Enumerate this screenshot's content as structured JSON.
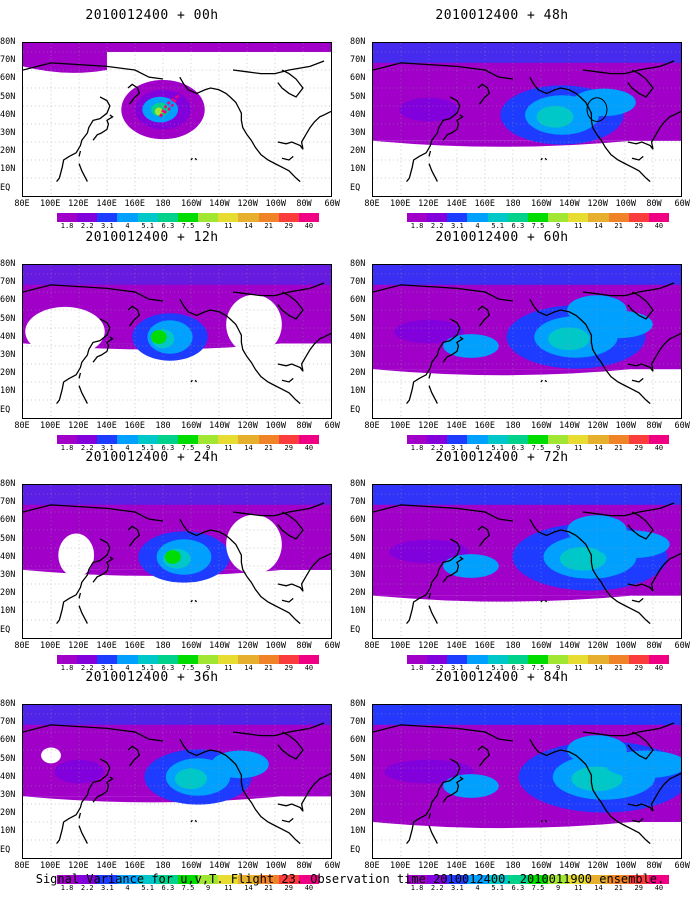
{
  "panels": [
    {
      "id": "p0",
      "title": "2010012400 + 00h",
      "level": 0
    },
    {
      "id": "p1",
      "title": "2010012400 + 48h",
      "level": 4
    },
    {
      "id": "p2",
      "title": "2010012400 + 12h",
      "level": 1
    },
    {
      "id": "p3",
      "title": "2010012400 + 60h",
      "level": 5
    },
    {
      "id": "p4",
      "title": "2010012400 + 24h",
      "level": 2
    },
    {
      "id": "p5",
      "title": "2010012400 + 72h",
      "level": 6
    },
    {
      "id": "p6",
      "title": "2010012400 + 36h",
      "level": 3
    },
    {
      "id": "p7",
      "title": "2010012400 + 84h",
      "level": 7
    }
  ],
  "lat_labels": [
    "80N",
    "70N",
    "60N",
    "50N",
    "40N",
    "30N",
    "20N",
    "10N",
    "EQ"
  ],
  "lon_labels": [
    "80E",
    "100E",
    "120E",
    "140E",
    "160E",
    "180",
    "160W",
    "140W",
    "120W",
    "100W",
    "80W",
    "60W"
  ],
  "colorbar": {
    "labels": [
      "1.8",
      "2.2",
      "3.1",
      "4",
      "5.1",
      "6.3",
      "7.5",
      "9",
      "11",
      "14",
      "21",
      "29",
      "40"
    ],
    "colors": [
      "#a000c8",
      "#8200dc",
      "#1e3cff",
      "#00a0ff",
      "#00c8c8",
      "#00d28c",
      "#00dc00",
      "#a0e632",
      "#e6dc32",
      "#e6af2d",
      "#f08228",
      "#fa3c3c",
      "#f00082"
    ]
  },
  "footer": "Signal Variance for u,v,T. Flight 23. Observation time 2010012400. 2010011900 ensemble."
}
